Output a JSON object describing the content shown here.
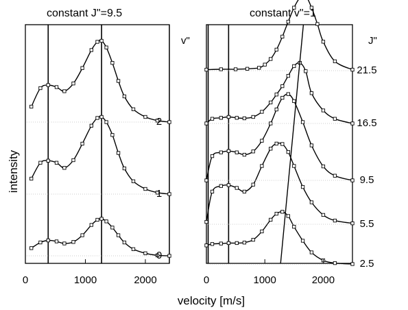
{
  "chart_data": [
    {
      "type": "line",
      "title": "constant J\"=9.5",
      "xlabel": "velocity [m/s]",
      "ylabel": "intensity",
      "xlim": [
        0,
        2400
      ],
      "x_ticks": [
        "0",
        "1000",
        "2000"
      ],
      "x_tick_values": [
        0,
        1000,
        2000
      ],
      "series_axis_title": "v\"",
      "vertical_lines": [
        380,
        1270
      ],
      "series": [
        {
          "name": "0",
          "baseline": 0.0,
          "x": [
            100,
            250,
            380,
            520,
            650,
            800,
            950,
            1100,
            1200,
            1270,
            1350,
            1450,
            1550,
            1650,
            1800,
            2000,
            2200,
            2400
          ],
          "y": [
            0.15,
            0.26,
            0.3,
            0.28,
            0.24,
            0.27,
            0.4,
            0.6,
            0.7,
            0.72,
            0.67,
            0.55,
            0.4,
            0.26,
            0.13,
            0.05,
            0.01,
            0.0
          ]
        },
        {
          "name": "1",
          "baseline": 0.0,
          "x": [
            100,
            250,
            380,
            520,
            650,
            800,
            950,
            1100,
            1200,
            1270,
            1350,
            1450,
            1550,
            1650,
            1800,
            2000,
            2200,
            2400
          ],
          "y": [
            0.3,
            0.61,
            0.65,
            0.61,
            0.51,
            0.66,
            0.98,
            1.33,
            1.48,
            1.5,
            1.4,
            1.15,
            0.8,
            0.5,
            0.25,
            0.1,
            0.03,
            0.0
          ]
        },
        {
          "name": "2",
          "baseline": 0.0,
          "x": [
            100,
            250,
            380,
            520,
            650,
            800,
            950,
            1100,
            1200,
            1270,
            1350,
            1450,
            1550,
            1650,
            1800,
            2000,
            2200,
            2400
          ],
          "y": [
            0.3,
            0.66,
            0.72,
            0.68,
            0.6,
            0.75,
            1.05,
            1.4,
            1.56,
            1.58,
            1.45,
            1.15,
            0.8,
            0.5,
            0.25,
            0.1,
            0.03,
            0.0
          ]
        }
      ]
    },
    {
      "type": "line",
      "title": "constant v\"=1",
      "xlabel": "velocity [m/s]",
      "xlim": [
        0,
        2500
      ],
      "x_ticks": [
        "0",
        "1000",
        "2000"
      ],
      "x_tick_values": [
        0,
        1000,
        2000
      ],
      "series_axis_title": "J\"",
      "vertical_lines": [
        30,
        380
      ],
      "series": [
        {
          "name": "2.5",
          "baseline": 0.0,
          "x": [
            0,
            100,
            250,
            380,
            520,
            650,
            800,
            950,
            1100,
            1200,
            1300,
            1400,
            1500,
            1650,
            1800,
            2000,
            2200,
            2500
          ],
          "y": [
            0.4,
            0.43,
            0.44,
            0.45,
            0.45,
            0.46,
            0.52,
            0.7,
            0.95,
            1.08,
            1.12,
            1.03,
            0.8,
            0.5,
            0.25,
            0.08,
            0.02,
            0.0
          ]
        },
        {
          "name": "5.5",
          "baseline": 0.0,
          "x": [
            0,
            100,
            250,
            380,
            520,
            650,
            800,
            950,
            1100,
            1200,
            1300,
            1400,
            1500,
            1650,
            1800,
            2000,
            2200,
            2500
          ],
          "y": [
            0.05,
            0.7,
            0.82,
            0.84,
            0.78,
            0.7,
            0.85,
            1.25,
            1.62,
            1.73,
            1.72,
            1.55,
            1.25,
            0.8,
            0.47,
            0.2,
            0.08,
            0.02
          ]
        },
        {
          "name": "9.5",
          "baseline": 0.0,
          "x": [
            0,
            100,
            250,
            380,
            520,
            650,
            800,
            950,
            1100,
            1200,
            1300,
            1400,
            1500,
            1650,
            1800,
            2000,
            2200,
            2500
          ],
          "y": [
            0.0,
            0.52,
            0.6,
            0.63,
            0.6,
            0.55,
            0.62,
            0.85,
            1.22,
            1.52,
            1.77,
            1.85,
            1.7,
            1.25,
            0.75,
            0.3,
            0.1,
            0.0
          ]
        },
        {
          "name": "16.5",
          "baseline": 0.0,
          "x": [
            0,
            100,
            250,
            380,
            520,
            650,
            800,
            950,
            1100,
            1200,
            1300,
            1400,
            1500,
            1600,
            1700,
            1800,
            2000,
            2200,
            2500
          ],
          "y": [
            0.0,
            0.1,
            0.12,
            0.14,
            0.12,
            0.11,
            0.14,
            0.25,
            0.45,
            0.62,
            0.8,
            1.02,
            1.23,
            1.3,
            1.12,
            0.65,
            0.28,
            0.1,
            0.0
          ]
        },
        {
          "name": "21.5",
          "baseline": 0.0,
          "x": [
            0,
            250,
            500,
            700,
            900,
            1000,
            1100,
            1200,
            1300,
            1400,
            1500,
            1600,
            1700,
            1800,
            1900,
            2000,
            2200,
            2500
          ],
          "y": [
            0.02,
            0.03,
            0.03,
            0.04,
            0.06,
            0.13,
            0.25,
            0.45,
            0.73,
            1.05,
            1.35,
            1.56,
            1.6,
            1.35,
            1.0,
            0.62,
            0.2,
            0.02
          ]
        }
      ]
    }
  ]
}
